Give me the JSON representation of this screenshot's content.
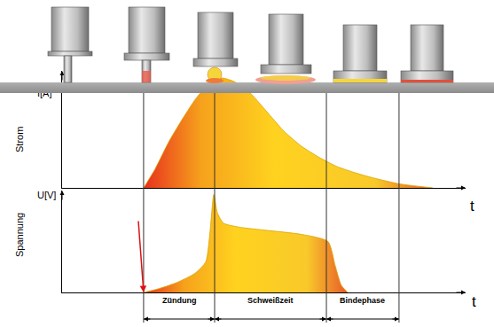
{
  "chart_data": [
    {
      "type": "area",
      "ylabel": "Strom",
      "annotation": "I[A]",
      "xlabel": "t",
      "x": [
        20.2,
        23.1,
        26.4,
        29.7,
        33.0,
        36.3,
        39.6,
        42.9,
        46.2,
        50.5,
        54.9,
        59.3,
        63.7,
        68.1,
        72.5,
        76.9,
        83.5,
        91.9
      ],
      "values": [
        0,
        19,
        45,
        67,
        87,
        102,
        108,
        104,
        95,
        76,
        56,
        41,
        30,
        21,
        15,
        10,
        4,
        0
      ],
      "xlim": [
        0,
        100
      ],
      "ylim": [
        0,
        115
      ],
      "tick_labels": false,
      "color": "#ffd21f"
    },
    {
      "type": "area",
      "ylabel": "Spannung",
      "annotation": "U[V]",
      "xlabel": "t",
      "x": [
        20.2,
        24.2,
        28.6,
        33.0,
        35.6,
        36.7,
        37.6,
        38.5,
        40.0,
        44.0,
        50.5,
        59.3,
        65.9,
        67.7,
        69.2,
        70.8
      ],
      "values": [
        0,
        4,
        10,
        19,
        30,
        61,
        96,
        78,
        68,
        64,
        61,
        57,
        50,
        26,
        7,
        0
      ],
      "xlim": [
        0,
        100
      ],
      "ylim": [
        0,
        100
      ],
      "tick_labels": false,
      "color": "#ffd21f",
      "phases": [
        {
          "label": "Zündung",
          "start": 20.2,
          "end": 37.8
        },
        {
          "label": "Schweißzeit",
          "start": 37.8,
          "end": 65.5
        },
        {
          "label": "Bindephase",
          "start": 65.5,
          "end": 83.5
        }
      ]
    }
  ]
}
